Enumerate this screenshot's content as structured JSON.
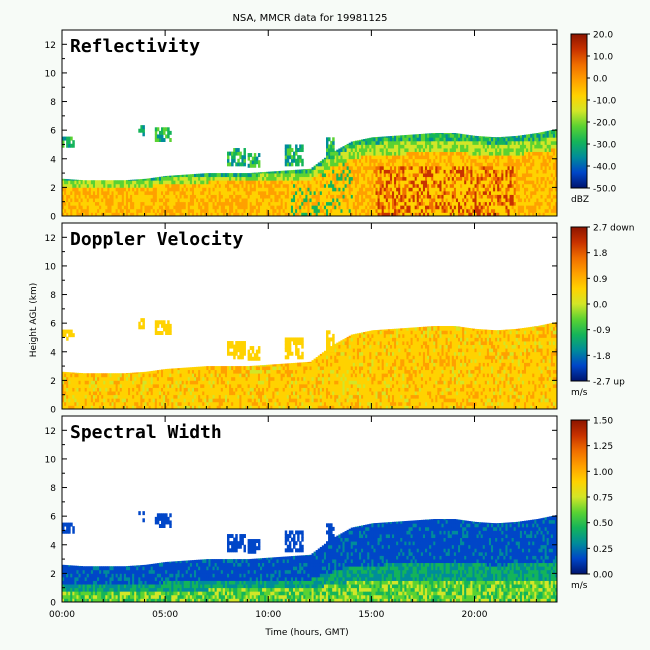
{
  "chart_data": {
    "type": "heatmap",
    "title": "NSA, MMCR data for 19981125",
    "xlabel": "Time (hours, GMT)",
    "ylabel": "Height AGL (km)",
    "xlim": [
      0,
      24
    ],
    "ylim": [
      0,
      13
    ],
    "xticks": [
      {
        "value": 0,
        "label": "00:00"
      },
      {
        "value": 5,
        "label": "05:00"
      },
      {
        "value": 10,
        "label": "10:00"
      },
      {
        "value": 15,
        "label": "15:00"
      },
      {
        "value": 20,
        "label": "20:00"
      }
    ],
    "yticks": [
      0,
      2,
      4,
      6,
      8,
      10,
      12
    ],
    "panels": [
      {
        "name": "Reflectivity",
        "unit": "dBZ",
        "colorbar": {
          "min": -50,
          "max": 20,
          "ticks": [
            "20.0",
            "10.0",
            "0.0",
            "-10.0",
            "-20.0",
            "-30.0",
            "-40.0",
            "-50.0"
          ]
        },
        "palette": [
          "#00146e",
          "#0046c8",
          "#008c9a",
          "#14b45a",
          "#5ad232",
          "#d2e628",
          "#ffd200",
          "#ffa000",
          "#f06e00",
          "#c83200",
          "#8c1400"
        ]
      },
      {
        "name": "Doppler Velocity",
        "unit": "m/s",
        "colorbar": {
          "min": -2.7,
          "max": 2.7,
          "ticks": [
            "2.7 down",
            "1.8",
            "0.9",
            "0.0",
            "-0.9",
            "-1.8",
            "-2.7 up"
          ]
        },
        "palette": [
          "#00146e",
          "#0046c8",
          "#008c9a",
          "#14b45a",
          "#5ad232",
          "#d2e628",
          "#ffd200",
          "#ffa000",
          "#f06e00",
          "#c83200",
          "#8c1400"
        ]
      },
      {
        "name": "Spectral Width",
        "unit": "m/s",
        "colorbar": {
          "min": 0,
          "max": 1.5,
          "ticks": [
            "1.50",
            "1.25",
            "1.00",
            "0.75",
            "0.50",
            "0.25",
            "0.00"
          ]
        },
        "palette": [
          "#00146e",
          "#0046c8",
          "#008c9a",
          "#14b45a",
          "#5ad232",
          "#d2e628",
          "#ffd200",
          "#ffa000",
          "#f06e00",
          "#c83200",
          "#8c1400"
        ]
      }
    ],
    "cloud_top_km": [
      {
        "t": 0,
        "top": 2.6
      },
      {
        "t": 1,
        "top": 2.5
      },
      {
        "t": 2,
        "top": 2.5
      },
      {
        "t": 3,
        "top": 2.5
      },
      {
        "t": 4,
        "top": 2.6
      },
      {
        "t": 5,
        "top": 2.8
      },
      {
        "t": 6,
        "top": 2.9
      },
      {
        "t": 7,
        "top": 3.0
      },
      {
        "t": 8,
        "top": 3.0
      },
      {
        "t": 9,
        "top": 3.0
      },
      {
        "t": 10,
        "top": 3.1
      },
      {
        "t": 11,
        "top": 3.2
      },
      {
        "t": 12,
        "top": 3.3
      },
      {
        "t": 13,
        "top": 4.4
      },
      {
        "t": 14,
        "top": 5.2
      },
      {
        "t": 15,
        "top": 5.5
      },
      {
        "t": 16,
        "top": 5.6
      },
      {
        "t": 17,
        "top": 5.7
      },
      {
        "t": 18,
        "top": 5.8
      },
      {
        "t": 19,
        "top": 5.8
      },
      {
        "t": 20,
        "top": 5.6
      },
      {
        "t": 21,
        "top": 5.5
      },
      {
        "t": 22,
        "top": 5.6
      },
      {
        "t": 23,
        "top": 5.8
      },
      {
        "t": 24,
        "top": 6.1
      }
    ],
    "cloud_patches": [
      {
        "t0": 0.0,
        "t1": 0.6,
        "h0": 4.8,
        "h1": 5.5
      },
      {
        "t0": 3.7,
        "t1": 4.0,
        "h0": 5.6,
        "h1": 6.3
      },
      {
        "t0": 4.5,
        "t1": 5.2,
        "h0": 5.2,
        "h1": 6.0
      },
      {
        "t0": 8.0,
        "t1": 8.8,
        "h0": 3.5,
        "h1": 4.6
      },
      {
        "t0": 9.0,
        "t1": 9.5,
        "h0": 3.4,
        "h1": 4.2
      },
      {
        "t0": 10.8,
        "t1": 11.6,
        "h0": 3.5,
        "h1": 4.8
      },
      {
        "t0": 12.8,
        "t1": 13.2,
        "h0": 4.0,
        "h1": 5.3
      }
    ]
  }
}
